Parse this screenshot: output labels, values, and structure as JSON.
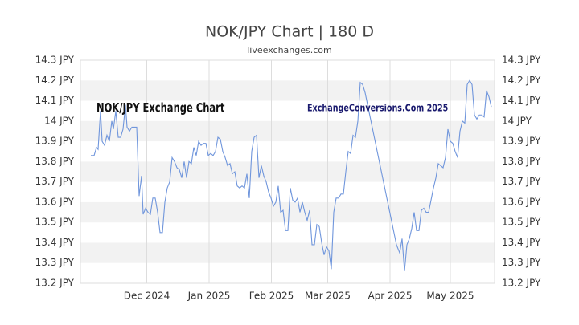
{
  "chart_data": {
    "type": "line",
    "title": "NOK/JPY Chart | 180 D",
    "subtitle": "liveexchanges.com",
    "annotations": [
      "NOK/JPY Exchange Chart",
      "ExchangeConversions.Com 2025"
    ],
    "color": "#7096dc",
    "grid": true,
    "xlim": [
      0,
      206
    ],
    "xticks": [
      {
        "value": 33,
        "label": "Dec 2024"
      },
      {
        "value": 64,
        "label": "Jan 2025"
      },
      {
        "value": 95,
        "label": "Feb 2025"
      },
      {
        "value": 123,
        "label": "Mar 2025"
      },
      {
        "value": 154,
        "label": "Apr 2025"
      },
      {
        "value": 184,
        "label": "May 2025"
      }
    ],
    "ylim": [
      13.2,
      14.3
    ],
    "yticks": [
      {
        "value": 13.2,
        "label": "13.2 JPY"
      },
      {
        "value": 13.3,
        "label": "13.3 JPY"
      },
      {
        "value": 13.4,
        "label": "13.4 JPY"
      },
      {
        "value": 13.5,
        "label": "13.5 JPY"
      },
      {
        "value": 13.6,
        "label": "13.6 JPY"
      },
      {
        "value": 13.7,
        "label": "13.7 JPY"
      },
      {
        "value": 13.8,
        "label": "13.8 JPY"
      },
      {
        "value": 13.9,
        "label": "13.9 JPY"
      },
      {
        "value": 14,
        "label": "14 JPY"
      },
      {
        "value": 14.1,
        "label": "14.1 JPY"
      },
      {
        "value": 14.2,
        "label": "14.2 JPY"
      },
      {
        "value": 14.3,
        "label": "14.3 JPY"
      }
    ],
    "y2lim": [
      13.2,
      14.3
    ],
    "y2ticks": [
      {
        "value": 13.2,
        "label": "13.2 JPY"
      },
      {
        "value": 13.3,
        "label": "13.3 JPY"
      },
      {
        "value": 13.4,
        "label": "13.4 JPY"
      },
      {
        "value": 13.5,
        "label": "13.5 JPY"
      },
      {
        "value": 13.6,
        "label": "13.6 JPY"
      },
      {
        "value": 13.7,
        "label": "13.7 JPY"
      },
      {
        "value": 13.8,
        "label": "13.8 JPY"
      },
      {
        "value": 13.9,
        "label": "13.9 JPY"
      },
      {
        "value": 14,
        "label": "14 JPY"
      },
      {
        "value": 14.1,
        "label": "14.1 JPY"
      },
      {
        "value": 14.2,
        "label": "14.2 JPY"
      },
      {
        "value": 14.3,
        "label": "14.3 JPY"
      }
    ],
    "x": [
      5.2,
      6.8,
      8,
      8.8,
      10,
      10.8,
      12,
      13.2,
      14.4,
      15.6,
      16.4,
      17.6,
      18.8,
      20,
      21.2,
      22.4,
      23.2,
      24.4,
      25.6,
      26.8,
      28,
      29.2,
      30.4,
      31.2,
      32.4,
      33.6,
      34.8,
      36,
      37.2,
      38.4,
      39.6,
      40.8,
      42,
      43.2,
      44.4,
      45.6,
      46.8,
      48,
      49.2,
      50.4,
      51.6,
      52.8,
      54,
      55.2,
      56.4,
      57.6,
      58.8,
      60,
      61.2,
      62.4,
      63.6,
      64.8,
      66,
      67.2,
      68.4,
      69.6,
      70.8,
      72,
      73.2,
      74.4,
      75.6,
      76.8,
      78,
      79.2,
      80.4,
      81.6,
      82.8,
      84,
      85.2,
      86.4,
      87.6,
      88.8,
      90,
      91.2,
      92.4,
      93.6,
      94.8,
      96,
      97.2,
      98.4,
      99.6,
      100.8,
      102,
      103.2,
      104.4,
      105.6,
      106.8,
      108,
      109.2,
      110.4,
      111.6,
      112.8,
      114,
      115.2,
      116.4,
      117.6,
      118.8,
      120,
      121.2,
      122.4,
      123.6,
      124.8,
      126,
      127.2,
      128.4,
      129.6,
      130.8,
      132,
      133.2,
      134.4,
      135.6,
      136.8,
      138,
      139.2,
      140.4,
      141.6,
      157.2,
      158.8,
      160,
      161.2,
      162.4,
      163.6,
      164.8,
      166,
      167.2,
      168.4,
      169.6,
      170.8,
      172,
      173.2,
      174.4,
      175.6,
      176.8,
      178,
      179.2,
      180.4,
      181.6,
      182.8,
      184,
      185.2,
      186.4,
      187.6,
      188.8,
      190,
      191.2,
      192.4,
      193.6,
      194.8,
      196,
      197.2,
      198.4,
      199.6,
      200.8,
      202,
      203.2,
      204.4
    ],
    "values": [
      13.83,
      13.83,
      13.87,
      13.86,
      14.05,
      13.9,
      13.88,
      13.93,
      13.9,
      14.0,
      13.96,
      14.05,
      13.92,
      13.92,
      13.96,
      14.08,
      13.97,
      13.95,
      13.97,
      13.97,
      13.97,
      13.63,
      13.73,
      13.54,
      13.57,
      13.55,
      13.54,
      13.62,
      13.62,
      13.55,
      13.45,
      13.45,
      13.6,
      13.67,
      13.7,
      13.82,
      13.8,
      13.77,
      13.76,
      13.72,
      13.8,
      13.72,
      13.8,
      13.79,
      13.87,
      13.83,
      13.9,
      13.88,
      13.89,
      13.89,
      13.83,
      13.84,
      13.83,
      13.85,
      13.92,
      13.91,
      13.85,
      13.82,
      13.78,
      13.79,
      13.74,
      13.75,
      13.68,
      13.67,
      13.68,
      13.67,
      13.74,
      13.62,
      13.85,
      13.92,
      13.93,
      13.72,
      13.78,
      13.73,
      13.7,
      13.65,
      13.62,
      13.58,
      13.6,
      13.68,
      13.55,
      13.56,
      13.46,
      13.46,
      13.67,
      13.61,
      13.6,
      13.62,
      13.55,
      13.6,
      13.55,
      13.51,
      13.56,
      13.39,
      13.39,
      13.49,
      13.48,
      13.4,
      13.34,
      13.38,
      13.36,
      13.27,
      13.55,
      13.62,
      13.62,
      13.64,
      13.64,
      13.75,
      13.85,
      13.84,
      13.93,
      13.92,
      14.0,
      14.19,
      14.18,
      14.14,
      13.39,
      13.35,
      13.42,
      13.26,
      13.39,
      13.42,
      13.47,
      13.55,
      13.46,
      13.46,
      13.56,
      13.57,
      13.55,
      13.55,
      13.61,
      13.67,
      13.72,
      13.79,
      13.78,
      13.77,
      13.82,
      13.96,
      13.9,
      13.89,
      13.85,
      13.82,
      13.95,
      14.0,
      13.99,
      14.18,
      14.2,
      14.18,
      14.03,
      14.01,
      14.03,
      14.03,
      14.02,
      14.15,
      14.12,
      14.07
    ]
  }
}
